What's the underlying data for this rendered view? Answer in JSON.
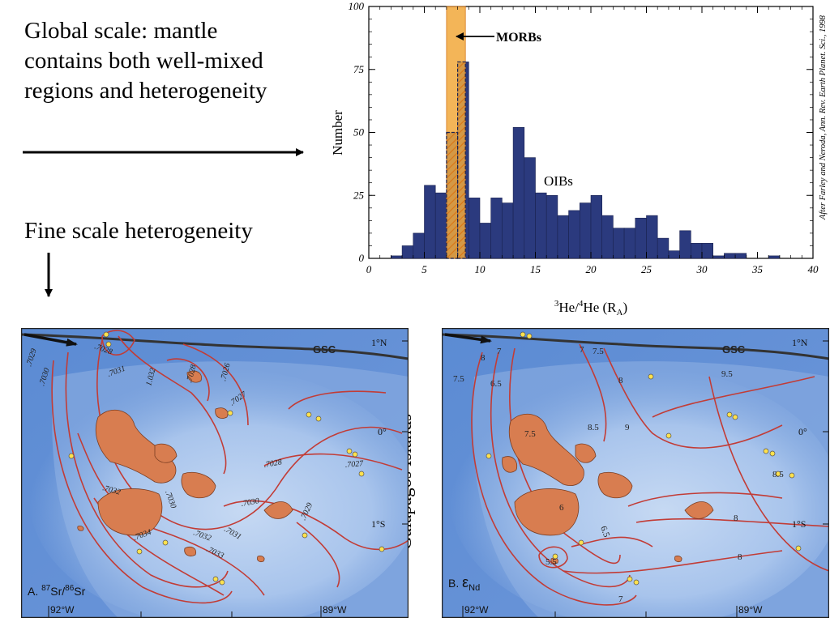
{
  "text": {
    "lead": [
      "Global scale: mantle",
      "contains both well-mixed",
      "regions and heterogeneity"
    ],
    "fine": "Fine scale heterogeneity",
    "galapagos": "Galapagos Islands"
  },
  "chart_data": {
    "type": "bar",
    "xlabel": "3He/4He (RA)",
    "ylabel": "Number",
    "xlim": [
      0,
      40
    ],
    "ylim": [
      0,
      100
    ],
    "x_ticks": [
      0,
      5,
      10,
      15,
      20,
      25,
      30,
      35,
      40
    ],
    "y_ticks": [
      0,
      25,
      50,
      75,
      100
    ],
    "bin_width": 1,
    "bin_starts": [
      2,
      3,
      4,
      5,
      6,
      7,
      8,
      9,
      10,
      11,
      12,
      13,
      14,
      15,
      16,
      17,
      18,
      19,
      20,
      21,
      22,
      23,
      24,
      25,
      26,
      27,
      28,
      29,
      30,
      31,
      32,
      33,
      34,
      35,
      36
    ],
    "series": [
      {
        "name": "OIBs",
        "values": [
          1,
          5,
          10,
          29,
          26,
          50,
          78,
          24,
          14,
          24,
          22,
          52,
          40,
          26,
          25,
          17,
          19,
          22,
          25,
          17,
          12,
          12,
          16,
          17,
          8,
          3,
          11,
          6,
          6,
          1,
          2,
          2,
          0,
          0,
          1
        ]
      }
    ],
    "morb_band": [
      7,
      8.7
    ],
    "annotations": {
      "morbs": "MORBs",
      "oibs": "OIBs"
    },
    "credit": "After Farley and Neroda, Ann. Rev. Earth Planet. Sci., 1998",
    "colors": {
      "bars": "#2b3a7e",
      "morb": "#f2a93c",
      "morb_edge": "#d8781a"
    }
  },
  "maps": [
    {
      "id": "A",
      "caption": "A. 87Sr/86Sr",
      "cap_prefix": "A.",
      "cap_iso1": "87",
      "cap_el1": "Sr/",
      "cap_iso2": "86",
      "cap_el2": "Sr",
      "lon_left": "92°W",
      "lon_right": "89°W",
      "lat_top": "1°N",
      "lat_mid": "0°",
      "lat_bottom": "1°S",
      "ridge": "GSC",
      "contour_labels": [
        ".7029",
        ".7030",
        ".7031",
        "1.032",
        ".7028",
        ".7026",
        ".7027",
        ".7028",
        ".7027",
        ".7032",
        ".7030",
        ".7030",
        ".7029",
        ".7034",
        ".7032",
        ".7031",
        ".7033",
        ".7028"
      ]
    },
    {
      "id": "B",
      "caption": "B. εNd",
      "cap_prefix": "B.",
      "cap_sym": "ε",
      "cap_sub": "Nd",
      "lon_left": "92°W",
      "lon_right": "89°W",
      "lat_top": "1°N",
      "lat_mid": "0°",
      "lat_bottom": "1°S",
      "ridge": "GSC",
      "contour_labels": [
        "8",
        "7",
        "7.5",
        "6.5",
        "7",
        "7.5",
        "8",
        "9.5",
        "7.5",
        "8.5",
        "9",
        "6",
        "6.5",
        "5.5",
        "8.5",
        "8",
        "8",
        "7"
      ]
    }
  ],
  "colors": {
    "ocean_deep": "#4f7ec9",
    "ocean_mid": "#7aa3de",
    "ocean_light": "#b7cff0",
    "island": "#d87d50",
    "contour": "#c23c36",
    "ridge": "#333333"
  }
}
